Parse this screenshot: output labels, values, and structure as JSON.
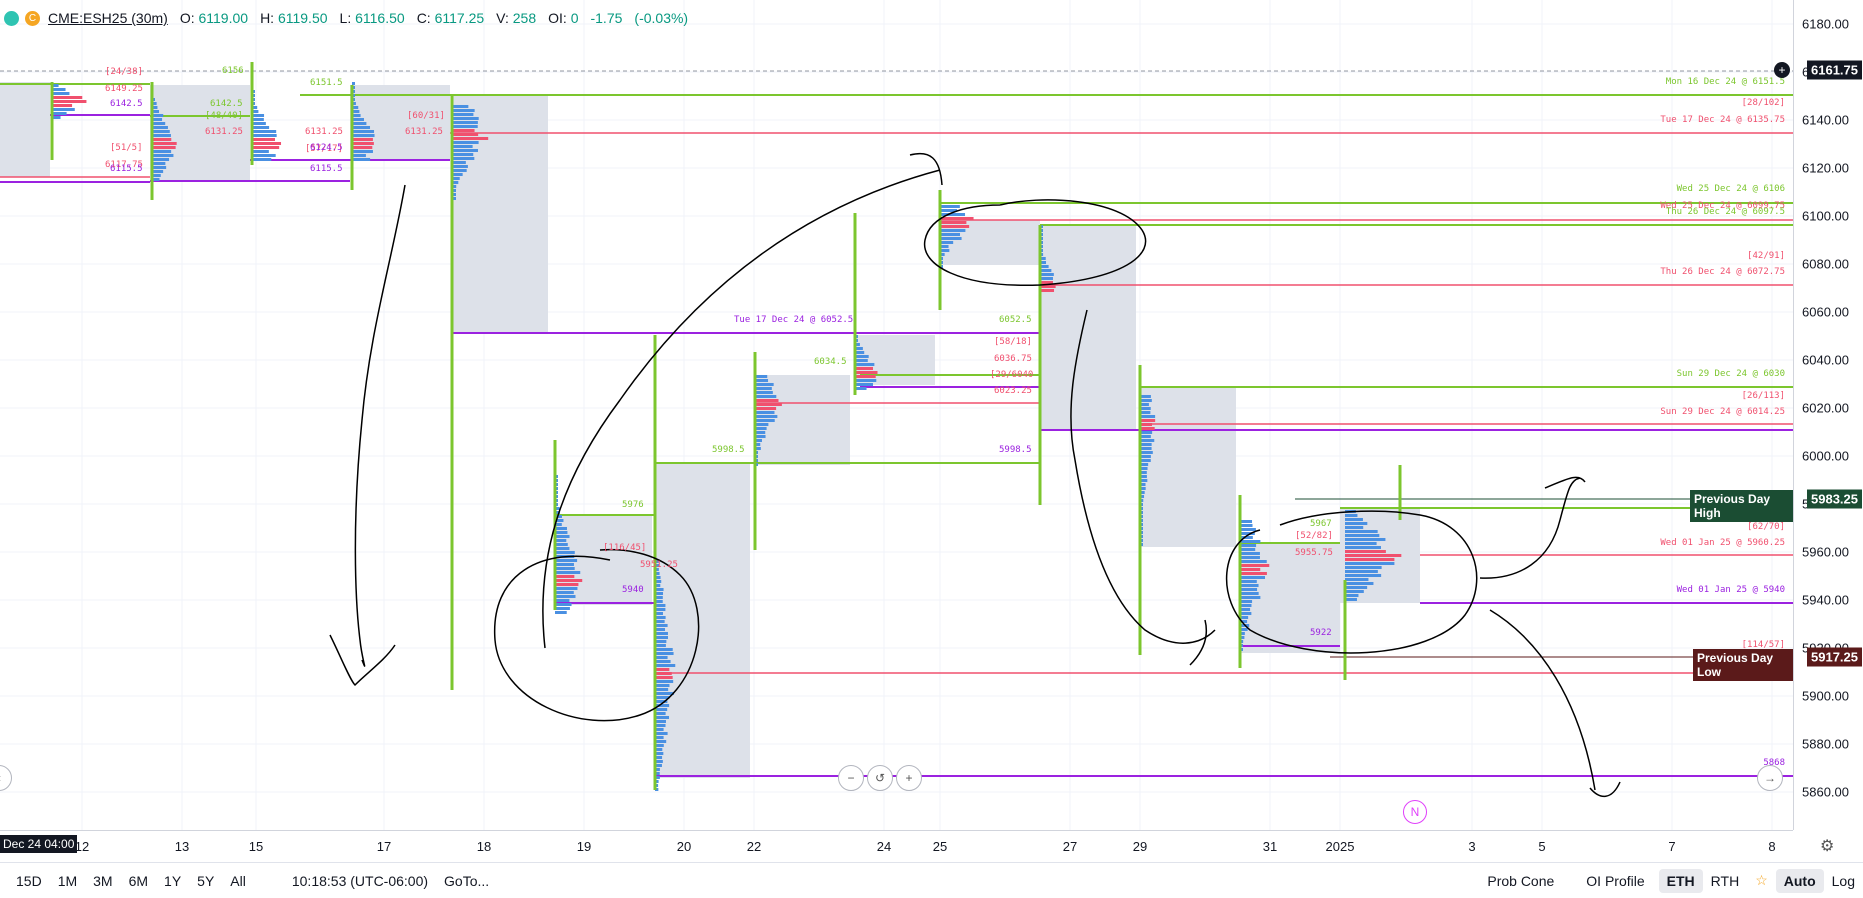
{
  "header": {
    "symbol": "CME:ESH25 (30m)",
    "open_label": "O:",
    "open": "6119.00",
    "high_label": "H:",
    "high": "6119.50",
    "low_label": "L:",
    "low": "6116.50",
    "close_label": "C:",
    "close": "6117.25",
    "volume_label": "V:",
    "volume": "258",
    "oi_label": "OI:",
    "oi": "0",
    "change": "-1.75",
    "change_pct": "(-0.03%)",
    "badge_letter": "C"
  },
  "price_axis": {
    "ticks": [
      "6180.00",
      "6160.00",
      "6140.00",
      "6120.00",
      "6100.00",
      "6080.00",
      "6060.00",
      "6040.00",
      "6020.00",
      "6000.00",
      "5980.00",
      "5960.00",
      "5940.00",
      "5920.00",
      "5900.00",
      "5880.00",
      "5860.00"
    ],
    "current_price": "6161.75",
    "prev_day_high_label": "Previous Day High",
    "prev_day_high": "5983.25",
    "prev_day_low_label": "Previous Day Low",
    "prev_day_low": "5917.25"
  },
  "time_axis": {
    "cursor_label": "Dec 24 04:00",
    "ticks": [
      "12",
      "13",
      "15",
      "17",
      "18",
      "19",
      "20",
      "22",
      "24",
      "25",
      "27",
      "29",
      "31",
      "2025",
      "3",
      "5",
      "7",
      "8"
    ]
  },
  "level_labels": {
    "mon16": "Mon 16 Dec 24 @ 6151.5",
    "r1": "[28/102]",
    "tue17": "Tue 17 Dec 24 @ 6135.75",
    "wed25a": "Wed 25 Dec 24 @ 6106",
    "wed25b": "Wed 25 Dec 24 @ 6099.75",
    "thu26a": "Thu 26 Dec 24 @ 6097.5",
    "r2": "[42/91]",
    "thu26b": "Thu 26 Dec 24 @ 6072.75",
    "sun29a": "Sun 29 Dec 24 @ 6030",
    "r3": "[26/113]",
    "sun29b": "Sun 29 Dec 24 @ 6014.25",
    "r4": "[62/70]",
    "wed01a": "Wed 01 Jan 25 @ 5960.25",
    "wed01b": "Wed 01 Jan 25 @ 5940",
    "r5": "[114/57]",
    "l5868": "5868",
    "tue17b": "Tue 17 Dec 24 @ 6052.5"
  },
  "profile_labels": {
    "a1": "[24/38]",
    "a2": "6149.25",
    "a3": "6142.5",
    "a4": "[51/5]",
    "a5": "6117.75",
    "a6": "6115.5",
    "b1": "6156",
    "b2": "6142.5",
    "b3": "[48/40]",
    "b4": "6131.25",
    "c1": "6151.5",
    "c2": "[57/17]",
    "c3": "6131.25",
    "c4": "6124.5",
    "c5": "6115.5",
    "d1": "[60/31]",
    "d2": "6131.25",
    "e1": "5976",
    "e2": "[116/45]",
    "e3": "5951.25",
    "e4": "5940",
    "f1": "5998.5",
    "g1": "6034.5",
    "g2": "6052.5",
    "g3": "[58/18]",
    "g4": "6036.75",
    "g5": "[29/6040",
    "g6": "6023.25",
    "g7": "5998.5",
    "h1": "5967",
    "h2": "[52/82]",
    "h3": "5955.75",
    "h4": "5922",
    "w1": "5983.25"
  },
  "bottom_bar": {
    "ranges": [
      "15D",
      "1M",
      "3M",
      "6M",
      "1Y",
      "5Y",
      "All"
    ],
    "clock": "10:18:53 (UTC-06:00)",
    "goto": "GoTo...",
    "prob_cone": "Prob Cone",
    "oi_profile": "OI Profile",
    "eth": "ETH",
    "rth": "RTH",
    "auto": "Auto",
    "log": "Log"
  },
  "colors": {
    "green": "#7cc62e",
    "red": "#f0506e",
    "purple": "#9b22e0",
    "blue": "#4a90e2",
    "pink": "#f5a0b0",
    "va_fill": "#dde1e9",
    "dark_green": "#1b4d33",
    "dark_red": "#5b1a1a"
  }
}
